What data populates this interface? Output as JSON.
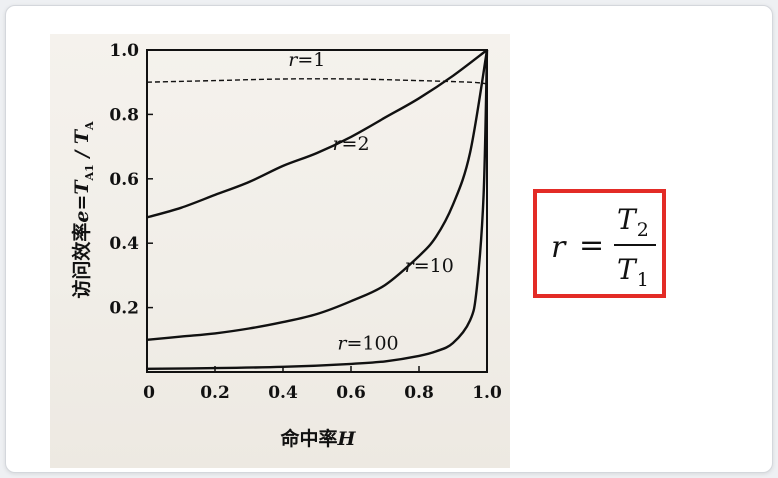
{
  "chart_data": {
    "type": "line",
    "xlabel_prefix": "命中率",
    "xlabel_var": "H",
    "ylabel_prefix": "访问效率",
    "ylabel_expr": "e=T",
    "ylabel_sub": "A1",
    "ylabel_suffix": " / T",
    "ylabel_sub2": "A",
    "xlim": [
      0,
      1.0
    ],
    "ylim": [
      0,
      1.0
    ],
    "xticks": [
      "0",
      "0.2",
      "0.4",
      "0.6",
      "0.8",
      "1.0"
    ],
    "yticks": [
      "0.2",
      "0.4",
      "0.6",
      "0.8",
      "1.0"
    ],
    "series": [
      {
        "name": "r=1",
        "r": 1,
        "style": "dashed",
        "points": [
          [
            0,
            0.9
          ],
          [
            0.2,
            0.905
          ],
          [
            0.4,
            0.91
          ],
          [
            0.6,
            0.91
          ],
          [
            0.8,
            0.905
          ],
          [
            0.95,
            0.9
          ],
          [
            1.0,
            0.895
          ]
        ]
      },
      {
        "name": "r=2",
        "r": 2,
        "style": "solid",
        "points": [
          [
            0,
            0.48
          ],
          [
            0.1,
            0.51
          ],
          [
            0.2,
            0.55
          ],
          [
            0.3,
            0.59
          ],
          [
            0.4,
            0.64
          ],
          [
            0.5,
            0.68
          ],
          [
            0.6,
            0.73
          ],
          [
            0.7,
            0.79
          ],
          [
            0.8,
            0.85
          ],
          [
            0.9,
            0.92
          ],
          [
            1.0,
            1.0
          ]
        ]
      },
      {
        "name": "r=10",
        "r": 10,
        "style": "solid",
        "points": [
          [
            0,
            0.1
          ],
          [
            0.1,
            0.11
          ],
          [
            0.2,
            0.12
          ],
          [
            0.3,
            0.135
          ],
          [
            0.4,
            0.155
          ],
          [
            0.5,
            0.18
          ],
          [
            0.6,
            0.22
          ],
          [
            0.7,
            0.27
          ],
          [
            0.8,
            0.36
          ],
          [
            0.85,
            0.42
          ],
          [
            0.9,
            0.52
          ],
          [
            0.95,
            0.68
          ],
          [
            1.0,
            1.0
          ]
        ]
      },
      {
        "name": "r=100",
        "r": 100,
        "style": "solid",
        "points": [
          [
            0,
            0.01
          ],
          [
            0.2,
            0.012
          ],
          [
            0.4,
            0.016
          ],
          [
            0.6,
            0.025
          ],
          [
            0.7,
            0.033
          ],
          [
            0.8,
            0.05
          ],
          [
            0.85,
            0.064
          ],
          [
            0.9,
            0.09
          ],
          [
            0.95,
            0.16
          ],
          [
            0.97,
            0.26
          ],
          [
            0.99,
            0.55
          ],
          [
            1.0,
            1.0
          ]
        ]
      }
    ],
    "labels": [
      {
        "series": "r=1",
        "var": "r",
        "text": "=1",
        "at": [
          0.47,
          0.95
        ]
      },
      {
        "series": "r=2",
        "var": "r",
        "text": "=2",
        "at": [
          0.6,
          0.69
        ]
      },
      {
        "series": "r=10",
        "var": "r",
        "text": "=10",
        "at": [
          0.83,
          0.31
        ]
      },
      {
        "series": "r=100",
        "var": "r",
        "text": "=100",
        "at": [
          0.65,
          0.07
        ]
      }
    ],
    "grid": false,
    "legend": "none"
  },
  "formula": {
    "lhs": "r",
    "eq": "=",
    "num_var": "T",
    "num_sub": "2",
    "den_var": "T",
    "den_sub": "1"
  },
  "colors": {
    "highlight_border": "#e32b26",
    "ink": "#111111"
  }
}
